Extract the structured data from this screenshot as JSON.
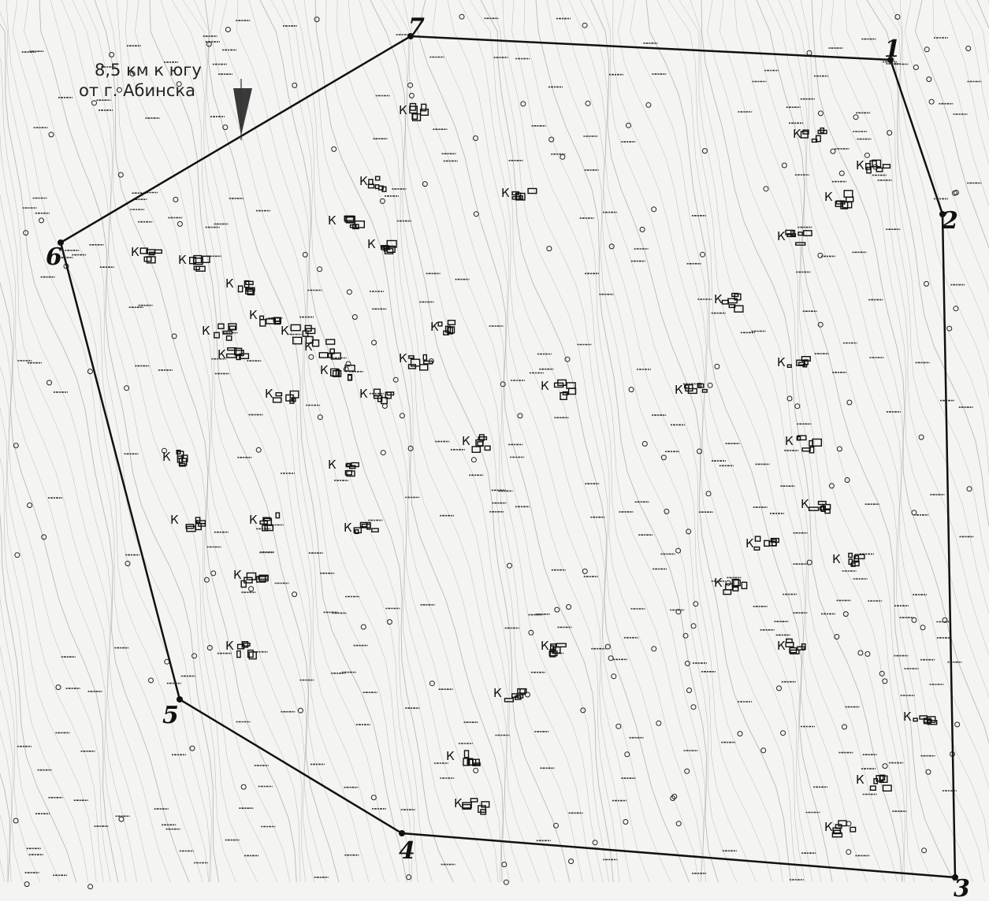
{
  "location": {
    "line1": "8,5 км к югу",
    "line2": "от г. Абинска"
  },
  "boundary": {
    "vertices": [
      {
        "label": "1"
      },
      {
        "label": "2"
      },
      {
        "label": "3"
      },
      {
        "label": "4"
      },
      {
        "label": "5"
      },
      {
        "label": "6"
      },
      {
        "label": "7"
      }
    ]
  },
  "kurgan_marker": "К",
  "north_arrow_icon": "north-arrow-icon",
  "colors": {
    "paper": "#f4f4f2",
    "ink": "#111111",
    "contour": "#8a8a8a"
  }
}
